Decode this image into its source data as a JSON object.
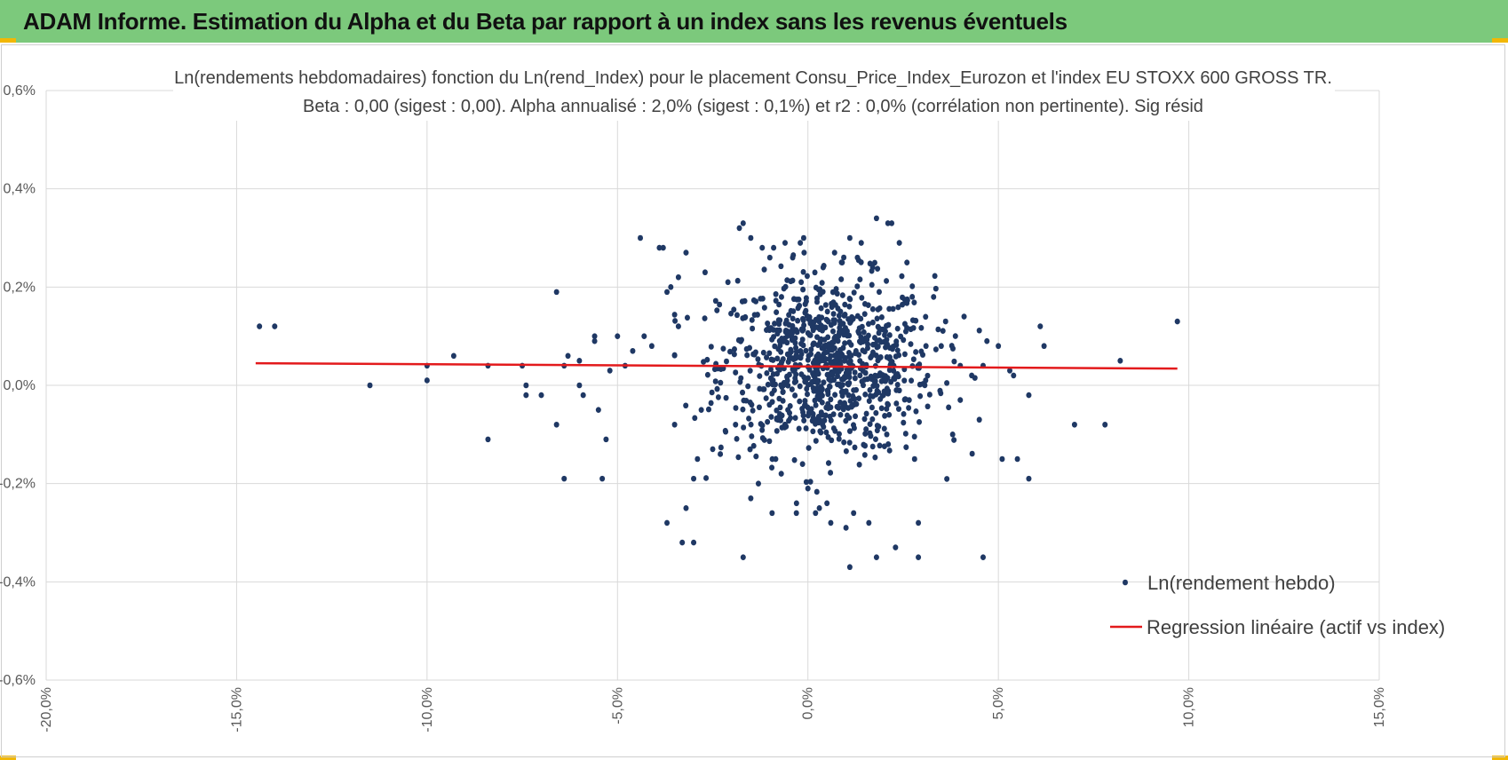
{
  "header": {
    "title": "ADAM Informe. Estimation du Alpha et du Beta par rapport à un index sans les revenus éventuels",
    "background": "#7cc97c",
    "corner_color": "#f2b705"
  },
  "chart_data": {
    "type": "scatter",
    "title_lines": [
      "Ln(rendements hebdomadaires) fonction du Ln(rend_Index) pour le placement Consu_Price_Index_Eurozon et l'index EU STOXX 600 GROSS TR.",
      "Beta : 0,00 (sigest : 0,00). Alpha annualisé : 2,0% (sigest : 0,1%) et r2 : 0,0% (corrélation non pertinente). Sig résid"
    ],
    "xlabel": "",
    "ylabel": "",
    "xlim": [
      -20,
      15
    ],
    "ylim": [
      -0.6,
      0.6
    ],
    "x_ticks": [
      -20,
      -15,
      -10,
      -5,
      0,
      5,
      10,
      15
    ],
    "x_tick_labels": [
      "-20,0%",
      "-15,0%",
      "-10,0%",
      "-5,0%",
      "0,0%",
      "5,0%",
      "10,0%",
      "15,0%"
    ],
    "y_ticks": [
      0.6,
      0.4,
      0.2,
      0.0,
      -0.2,
      -0.4,
      -0.6
    ],
    "y_tick_labels": [
      "0,6%",
      "0,4%",
      "0,2%",
      "0,0%",
      "-0,2%",
      "-0,4%",
      "-0,6%"
    ],
    "grid": true,
    "legend_position": "bottom-right",
    "series": [
      {
        "name": "Ln(rendement hebdo)",
        "kind": "scatter",
        "color": "#1f3864",
        "points": [
          [
            -14.4,
            0.12
          ],
          [
            -14.0,
            0.12
          ],
          [
            -11.5,
            0.0
          ],
          [
            -10.0,
            0.01
          ],
          [
            -10.0,
            0.04
          ],
          [
            -9.3,
            0.06
          ],
          [
            -8.4,
            -0.11
          ],
          [
            -8.4,
            0.04
          ],
          [
            -7.5,
            0.04
          ],
          [
            -7.4,
            0.0
          ],
          [
            -7.4,
            -0.02
          ],
          [
            -7.0,
            -0.02
          ],
          [
            -6.6,
            0.19
          ],
          [
            -6.6,
            -0.08
          ],
          [
            -6.4,
            -0.19
          ],
          [
            -6.4,
            0.04
          ],
          [
            -6.3,
            0.06
          ],
          [
            -6.0,
            0.05
          ],
          [
            -6.0,
            0.0
          ],
          [
            -5.9,
            -0.02
          ],
          [
            -5.6,
            0.1
          ],
          [
            -5.6,
            0.09
          ],
          [
            -5.5,
            -0.05
          ],
          [
            -5.4,
            -0.19
          ],
          [
            -5.3,
            -0.11
          ],
          [
            -5.2,
            0.03
          ],
          [
            -5.0,
            0.1
          ],
          [
            -4.8,
            0.04
          ],
          [
            -4.6,
            0.07
          ],
          [
            -4.4,
            0.3
          ],
          [
            -4.3,
            0.1
          ],
          [
            -4.1,
            0.08
          ],
          [
            -3.9,
            0.28
          ],
          [
            -3.8,
            0.28
          ],
          [
            -3.7,
            0.19
          ],
          [
            -3.6,
            0.2
          ],
          [
            -3.7,
            -0.28
          ],
          [
            -3.5,
            -0.08
          ],
          [
            -3.4,
            0.22
          ],
          [
            -3.4,
            0.12
          ],
          [
            -3.3,
            -0.32
          ],
          [
            -3.2,
            0.27
          ],
          [
            -3.2,
            -0.25
          ],
          [
            -3.0,
            -0.32
          ],
          [
            -3.0,
            -0.19
          ],
          [
            -2.9,
            -0.15
          ],
          [
            -2.8,
            -0.05
          ],
          [
            -2.7,
            0.23
          ],
          [
            -2.5,
            -0.13
          ],
          [
            -2.3,
            -0.14
          ],
          [
            -2.1,
            0.21
          ],
          [
            -1.9,
            -0.08
          ],
          [
            -1.8,
            0.32
          ],
          [
            -1.7,
            0.33
          ],
          [
            -1.7,
            -0.35
          ],
          [
            -1.5,
            0.3
          ],
          [
            -1.5,
            -0.23
          ],
          [
            -1.3,
            -0.2
          ],
          [
            -1.2,
            0.28
          ],
          [
            -1.0,
            0.26
          ],
          [
            -0.9,
            0.28
          ],
          [
            -0.7,
            -0.18
          ],
          [
            -0.6,
            0.29
          ],
          [
            -0.4,
            0.26
          ],
          [
            -0.3,
            -0.24
          ],
          [
            -0.2,
            0.29
          ],
          [
            -0.1,
            0.27
          ],
          [
            0.0,
            -0.21
          ],
          [
            0.2,
            -0.26
          ],
          [
            0.3,
            -0.25
          ],
          [
            0.4,
            0.24
          ],
          [
            0.5,
            -0.24
          ],
          [
            0.6,
            -0.28
          ],
          [
            0.7,
            0.27
          ],
          [
            0.9,
            0.25
          ],
          [
            1.0,
            -0.29
          ],
          [
            1.1,
            0.3
          ],
          [
            1.1,
            -0.37
          ],
          [
            1.2,
            -0.26
          ],
          [
            1.3,
            0.26
          ],
          [
            1.4,
            0.29
          ],
          [
            1.6,
            -0.28
          ],
          [
            1.7,
            0.24
          ],
          [
            1.8,
            0.34
          ],
          [
            1.8,
            -0.35
          ],
          [
            2.1,
            0.33
          ],
          [
            2.2,
            0.33
          ],
          [
            2.3,
            -0.33
          ],
          [
            2.4,
            0.29
          ],
          [
            2.6,
            0.25
          ],
          [
            2.8,
            -0.15
          ],
          [
            2.9,
            -0.28
          ],
          [
            2.9,
            -0.35
          ],
          [
            3.1,
            0.08
          ],
          [
            3.3,
            0.18
          ],
          [
            3.5,
            0.08
          ],
          [
            3.8,
            -0.1
          ],
          [
            4.0,
            0.04
          ],
          [
            4.0,
            -0.03
          ],
          [
            4.1,
            0.14
          ],
          [
            4.3,
            0.02
          ],
          [
            4.5,
            -0.07
          ],
          [
            4.6,
            0.04
          ],
          [
            4.6,
            -0.35
          ],
          [
            4.7,
            0.09
          ],
          [
            5.0,
            0.08
          ],
          [
            5.1,
            -0.15
          ],
          [
            5.3,
            0.03
          ],
          [
            5.4,
            0.02
          ],
          [
            5.5,
            -0.15
          ],
          [
            5.8,
            -0.19
          ],
          [
            5.8,
            -0.02
          ],
          [
            6.1,
            0.12
          ],
          [
            6.2,
            0.08
          ],
          [
            7.0,
            -0.08
          ],
          [
            7.8,
            -0.08
          ],
          [
            8.2,
            0.05
          ],
          [
            9.7,
            0.13
          ]
        ]
      },
      {
        "name": "Regression linéaire (actif vs index)",
        "kind": "line",
        "color": "#e31a1c",
        "points": [
          [
            -14.5,
            0.045
          ],
          [
            9.7,
            0.034
          ]
        ]
      }
    ],
    "cluster_summary": {
      "series": "Ln(rendement hebdo)",
      "count": 900,
      "mean_x": 0.5,
      "mean_y": 0.04,
      "sd_x": 1.4,
      "sd_y": 0.09
    }
  }
}
